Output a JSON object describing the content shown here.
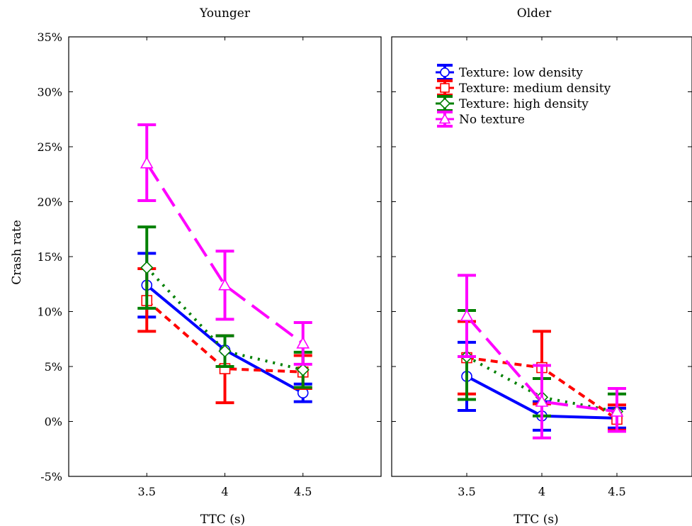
{
  "chart_data": [
    {
      "type": "line",
      "title": "Younger",
      "xlabel": "TTC (s)",
      "ylabel": "Crash rate",
      "x": [
        "3.5",
        "4",
        "4.5"
      ],
      "xlim": [
        3.0,
        5.0
      ],
      "ylim": [
        -5,
        35
      ],
      "yticks": [
        "-5%",
        "0%",
        "5%",
        "10%",
        "15%",
        "20%",
        "25%",
        "30%",
        "35%"
      ],
      "grid": false,
      "series": [
        {
          "name": "Texture: low density",
          "values": [
            12.4,
            6.5,
            2.6
          ],
          "lower": [
            9.5,
            5.0,
            1.8
          ],
          "upper": [
            15.3,
            7.8,
            3.4
          ],
          "color": "#0000ff",
          "marker": "circle"
        },
        {
          "name": "Texture: medium density",
          "values": [
            11.0,
            4.8,
            4.5
          ],
          "lower": [
            8.2,
            1.7,
            3.0
          ],
          "upper": [
            13.9,
            7.8,
            6.0
          ],
          "color": "#ff0000",
          "marker": "square"
        },
        {
          "name": "Texture: high density",
          "values": [
            14.0,
            6.4,
            4.7
          ],
          "lower": [
            10.3,
            5.0,
            3.1
          ],
          "upper": [
            17.7,
            7.8,
            6.3
          ],
          "color": "#008000",
          "marker": "diamond"
        },
        {
          "name": "No texture",
          "values": [
            23.5,
            12.4,
            7.1
          ],
          "lower": [
            20.1,
            9.3,
            5.2
          ],
          "upper": [
            27.0,
            15.5,
            9.0
          ],
          "color": "#ff00ff",
          "marker": "triangle"
        }
      ]
    },
    {
      "type": "line",
      "title": "Older",
      "xlabel": "TTC (s)",
      "ylabel": "",
      "x": [
        "3.5",
        "4",
        "4.5"
      ],
      "xlim": [
        3.0,
        5.0
      ],
      "ylim": [
        -5,
        35
      ],
      "grid": false,
      "legend": "top-left",
      "series": [
        {
          "name": "Texture: low density",
          "values": [
            4.1,
            0.5,
            0.3
          ],
          "lower": [
            1.0,
            -0.8,
            -0.6
          ],
          "upper": [
            7.2,
            1.8,
            1.2
          ],
          "color": "#0000ff",
          "marker": "circle"
        },
        {
          "name": "Texture: medium density",
          "values": [
            5.8,
            4.9,
            0.2
          ],
          "lower": [
            2.5,
            1.6,
            -0.8
          ],
          "upper": [
            9.1,
            8.2,
            1.5
          ],
          "color": "#ff0000",
          "marker": "square"
        },
        {
          "name": "Texture: high density",
          "values": [
            5.9,
            2.2,
            0.9
          ],
          "lower": [
            2.0,
            0.5,
            -0.9
          ],
          "upper": [
            10.1,
            3.9,
            2.5
          ],
          "color": "#008000",
          "marker": "diamond"
        },
        {
          "name": "No texture",
          "values": [
            9.6,
            1.8,
            0.9
          ],
          "lower": [
            5.9,
            -1.5,
            -0.9
          ],
          "upper": [
            13.3,
            5.1,
            3.0
          ],
          "color": "#ff00ff",
          "marker": "triangle"
        }
      ]
    }
  ]
}
